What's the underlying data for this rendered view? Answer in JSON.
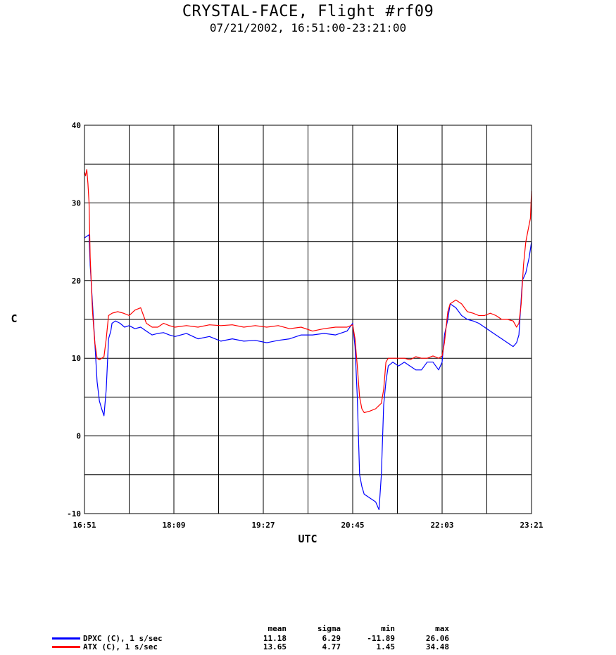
{
  "title": "CRYSTAL-FACE, Flight #rf09",
  "subtitle": "07/21/2002, 16:51:00-23:21:00",
  "chart_data": {
    "type": "line",
    "title": "CRYSTAL-FACE, Flight #rf09",
    "subtitle": "07/21/2002, 16:51:00-23:21:00",
    "xlabel": "UTC",
    "ylabel": "C",
    "xlim": [
      "16:51",
      "23:21"
    ],
    "ylim": [
      -10,
      40
    ],
    "x_ticks": [
      "16:51",
      "18:09",
      "19:27",
      "20:45",
      "22:03",
      "23:21"
    ],
    "y_ticks": [
      -10,
      0,
      10,
      20,
      30,
      40
    ],
    "grid": true,
    "legend_position": "bottom-left",
    "series": [
      {
        "name": "DPXC (C), 1 s/sec",
        "color": "#0000ff",
        "x": [
          "16:51",
          "16:53",
          "16:55",
          "16:56",
          "16:58",
          "17:00",
          "17:02",
          "17:04",
          "17:06",
          "17:08",
          "17:10",
          "17:12",
          "17:14",
          "17:15",
          "17:18",
          "17:22",
          "17:26",
          "17:30",
          "17:35",
          "17:40",
          "17:45",
          "17:50",
          "17:55",
          "18:00",
          "18:05",
          "18:10",
          "18:20",
          "18:30",
          "18:40",
          "18:50",
          "19:00",
          "19:10",
          "19:20",
          "19:30",
          "19:40",
          "19:50",
          "20:00",
          "20:10",
          "20:20",
          "20:30",
          "20:40",
          "20:45",
          "20:47",
          "20:49",
          "20:51",
          "20:53",
          "20:55",
          "21:00",
          "21:05",
          "21:08",
          "21:10",
          "21:12",
          "21:14",
          "21:16",
          "21:20",
          "21:25",
          "21:30",
          "21:35",
          "21:40",
          "21:45",
          "21:50",
          "21:55",
          "22:00",
          "22:03",
          "22:05",
          "22:08",
          "22:10",
          "22:15",
          "22:20",
          "22:25",
          "22:30",
          "22:35",
          "22:40",
          "22:45",
          "22:50",
          "22:55",
          "23:00",
          "23:05",
          "23:08",
          "23:10",
          "23:13",
          "23:16",
          "23:19",
          "23:21"
        ],
        "y": [
          25.5,
          25.7,
          25.9,
          22.0,
          17.0,
          12.0,
          7.0,
          4.5,
          3.5,
          2.6,
          6.0,
          12.5,
          13.5,
          14.5,
          14.8,
          14.5,
          14.0,
          14.2,
          13.8,
          14.0,
          13.5,
          13.0,
          13.2,
          13.3,
          13.0,
          12.8,
          13.2,
          12.5,
          12.8,
          12.2,
          12.5,
          12.2,
          12.3,
          12.0,
          12.3,
          12.5,
          13.0,
          13.0,
          13.2,
          13.0,
          13.5,
          14.5,
          11.5,
          5.0,
          -5.0,
          -6.5,
          -7.5,
          -8.0,
          -8.5,
          -9.5,
          -5.0,
          4.0,
          7.0,
          9.0,
          9.5,
          9.0,
          9.5,
          9.0,
          8.5,
          8.5,
          9.5,
          9.5,
          8.5,
          9.5,
          13.0,
          15.0,
          17.0,
          16.5,
          15.5,
          15.0,
          14.8,
          14.5,
          14.0,
          13.5,
          13.0,
          12.5,
          12.0,
          11.5,
          12.0,
          13.0,
          20.0,
          21.0,
          23.0,
          25.0
        ]
      },
      {
        "name": "ATX (C), 1 s/sec",
        "color": "#ff0000",
        "x": [
          "16:51",
          "16:52",
          "16:53",
          "16:54",
          "16:55",
          "16:56",
          "16:58",
          "17:00",
          "17:02",
          "17:04",
          "17:06",
          "17:08",
          "17:10",
          "17:12",
          "17:15",
          "17:20",
          "17:25",
          "17:30",
          "17:35",
          "17:40",
          "17:45",
          "17:50",
          "17:55",
          "18:00",
          "18:05",
          "18:10",
          "18:20",
          "18:30",
          "18:40",
          "18:50",
          "19:00",
          "19:10",
          "19:20",
          "19:30",
          "19:40",
          "19:50",
          "20:00",
          "20:10",
          "20:20",
          "20:30",
          "20:40",
          "20:45",
          "20:47",
          "20:49",
          "20:51",
          "20:53",
          "20:55",
          "21:00",
          "21:05",
          "21:10",
          "21:12",
          "21:14",
          "21:16",
          "21:20",
          "21:25",
          "21:30",
          "21:35",
          "21:40",
          "21:45",
          "21:50",
          "21:55",
          "22:00",
          "22:03",
          "22:05",
          "22:08",
          "22:10",
          "22:15",
          "22:20",
          "22:25",
          "22:30",
          "22:35",
          "22:40",
          "22:45",
          "22:50",
          "22:55",
          "23:00",
          "23:05",
          "23:08",
          "23:10",
          "23:12",
          "23:14",
          "23:16",
          "23:18",
          "23:20",
          "23:21"
        ],
        "y": [
          34.0,
          33.5,
          34.3,
          32.5,
          30.0,
          23.0,
          16.0,
          12.0,
          10.0,
          9.8,
          10.0,
          10.2,
          12.5,
          15.5,
          15.8,
          16.0,
          15.8,
          15.5,
          16.2,
          16.5,
          14.5,
          14.0,
          14.0,
          14.5,
          14.2,
          14.0,
          14.2,
          14.0,
          14.3,
          14.2,
          14.3,
          14.0,
          14.2,
          14.0,
          14.2,
          13.8,
          14.0,
          13.5,
          13.8,
          14.0,
          14.0,
          14.3,
          12.5,
          9.0,
          5.0,
          3.5,
          3.0,
          3.2,
          3.5,
          4.2,
          6.0,
          9.5,
          10.0,
          10.0,
          10.0,
          10.0,
          9.8,
          10.2,
          10.0,
          10.0,
          10.3,
          10.0,
          10.3,
          12.0,
          16.0,
          17.0,
          17.5,
          17.0,
          16.0,
          15.8,
          15.5,
          15.5,
          15.8,
          15.5,
          15.0,
          15.0,
          14.8,
          14.0,
          14.5,
          17.0,
          22.0,
          25.0,
          26.5,
          28.0,
          31.5
        ]
      }
    ],
    "stats": {
      "headers": [
        "mean",
        "sigma",
        "min",
        "max"
      ],
      "rows": [
        {
          "name": "DPXC (C), 1 s/sec",
          "values": [
            "11.18",
            "6.29",
            "-11.89",
            "26.06"
          ]
        },
        {
          "name": "ATX (C), 1 s/sec",
          "values": [
            "13.65",
            "4.77",
            "1.45",
            "34.48"
          ]
        }
      ]
    }
  }
}
